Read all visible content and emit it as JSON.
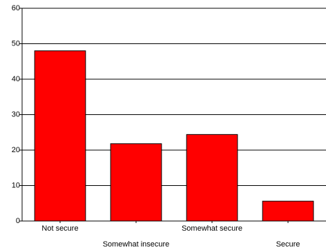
{
  "chart_data": {
    "type": "bar",
    "categories": [
      "Not secure",
      "Somewhat insecure",
      "Somewhat secure",
      "Secure"
    ],
    "values": [
      48,
      21.8,
      24.4,
      5.6
    ],
    "ylim": [
      0,
      60
    ],
    "yticks": [
      0,
      10,
      20,
      30,
      40,
      50,
      60
    ],
    "grid": true,
    "legend": "none",
    "colors": {
      "bar": "#ff0000",
      "bar_edge": "#000000",
      "grid": "#000000",
      "axis": "#000000",
      "background": "#ffffff"
    }
  }
}
